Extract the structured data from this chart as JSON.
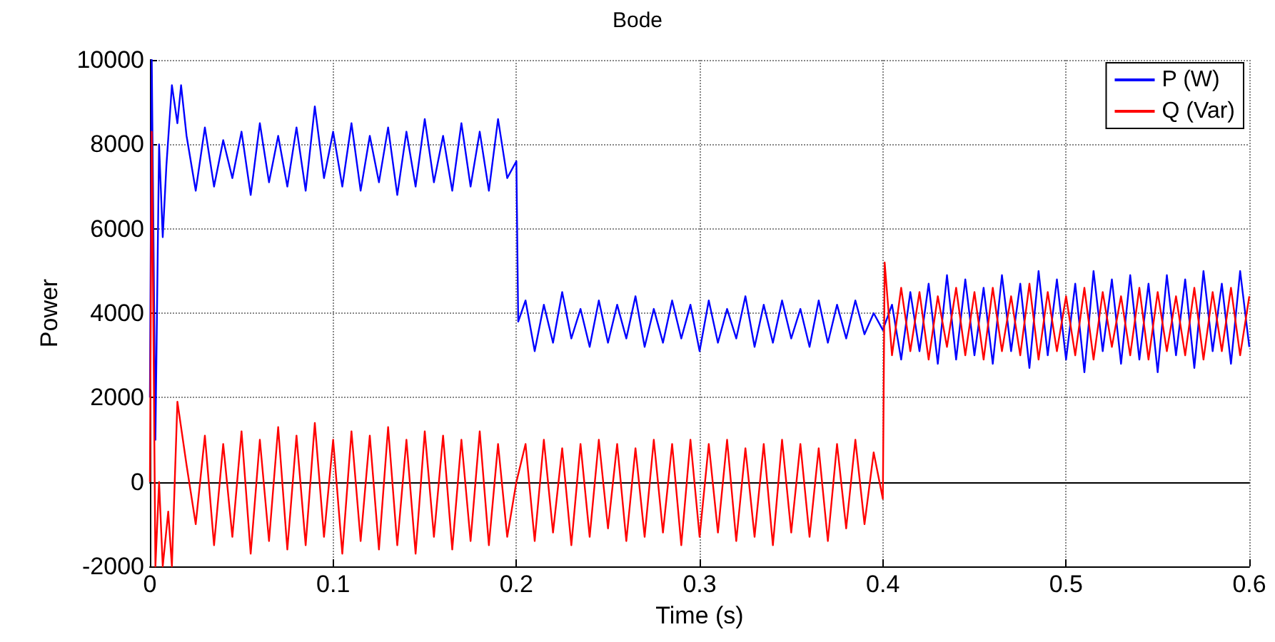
{
  "chart_data": {
    "type": "line",
    "title": "Bode",
    "xlabel": "Time (s)",
    "ylabel": "Power",
    "xlim": [
      0,
      0.6
    ],
    "xticks": [
      0,
      0.1,
      0.2,
      0.3,
      0.4,
      0.5,
      0.6
    ],
    "ylim": [
      -2000,
      10000
    ],
    "yticks": [
      -2000,
      0,
      2000,
      4000,
      6000,
      8000,
      10000
    ],
    "grid": true,
    "legend": "top right",
    "line_style": "solid",
    "marker": "none",
    "series": [
      {
        "name": "P (W)",
        "color": "#0000ff",
        "x": [
          0,
          0.001,
          0.003,
          0.005,
          0.007,
          0.009,
          0.012,
          0.015,
          0.017,
          0.02,
          0.025,
          0.03,
          0.035,
          0.04,
          0.045,
          0.05,
          0.055,
          0.06,
          0.065,
          0.07,
          0.075,
          0.08,
          0.085,
          0.09,
          0.095,
          0.1,
          0.105,
          0.11,
          0.115,
          0.12,
          0.125,
          0.13,
          0.135,
          0.14,
          0.145,
          0.15,
          0.155,
          0.16,
          0.165,
          0.17,
          0.175,
          0.18,
          0.185,
          0.19,
          0.195,
          0.2,
          0.201,
          0.205,
          0.21,
          0.215,
          0.22,
          0.225,
          0.23,
          0.235,
          0.24,
          0.245,
          0.25,
          0.255,
          0.26,
          0.265,
          0.27,
          0.275,
          0.28,
          0.285,
          0.29,
          0.295,
          0.3,
          0.305,
          0.31,
          0.315,
          0.32,
          0.325,
          0.33,
          0.335,
          0.34,
          0.345,
          0.35,
          0.355,
          0.36,
          0.365,
          0.37,
          0.375,
          0.38,
          0.385,
          0.39,
          0.395,
          0.4,
          0.405,
          0.41,
          0.415,
          0.42,
          0.425,
          0.43,
          0.435,
          0.44,
          0.445,
          0.45,
          0.455,
          0.46,
          0.465,
          0.47,
          0.475,
          0.48,
          0.485,
          0.49,
          0.495,
          0.5,
          0.505,
          0.51,
          0.515,
          0.52,
          0.525,
          0.53,
          0.535,
          0.54,
          0.545,
          0.55,
          0.555,
          0.56,
          0.565,
          0.57,
          0.575,
          0.58,
          0.585,
          0.59,
          0.595,
          0.6
        ],
        "values": [
          2000,
          10000,
          1000,
          8000,
          5800,
          7500,
          9400,
          8500,
          9400,
          8200,
          6900,
          8400,
          7000,
          8100,
          7200,
          8300,
          6800,
          8500,
          7100,
          8200,
          7000,
          8400,
          6900,
          8900,
          7200,
          8300,
          7000,
          8500,
          6900,
          8200,
          7100,
          8400,
          6800,
          8300,
          7000,
          8600,
          7100,
          8200,
          6900,
          8500,
          7000,
          8300,
          6900,
          8600,
          7200,
          7600,
          3800,
          4300,
          3100,
          4200,
          3300,
          4500,
          3400,
          4100,
          3200,
          4300,
          3300,
          4200,
          3400,
          4400,
          3200,
          4100,
          3300,
          4300,
          3400,
          4200,
          3100,
          4300,
          3300,
          4100,
          3400,
          4400,
          3200,
          4200,
          3300,
          4300,
          3400,
          4100,
          3200,
          4300,
          3300,
          4200,
          3400,
          4300,
          3500,
          4000,
          3600,
          4200,
          2900,
          4500,
          3100,
          4700,
          2800,
          4900,
          2900,
          4800,
          3000,
          4600,
          2800,
          4900,
          3100,
          4700,
          2700,
          5000,
          3000,
          4800,
          2900,
          4700,
          2600,
          5000,
          3100,
          4800,
          2800,
          4900,
          2900,
          4700,
          2600,
          4900,
          3000,
          4800,
          2700,
          5000,
          3100,
          4700,
          2800,
          5000,
          3200
        ]
      },
      {
        "name": "Q (Var)",
        "color": "#ff0000",
        "x": [
          0,
          0.001,
          0.003,
          0.005,
          0.007,
          0.01,
          0.012,
          0.015,
          0.02,
          0.025,
          0.03,
          0.035,
          0.04,
          0.045,
          0.05,
          0.055,
          0.06,
          0.065,
          0.07,
          0.075,
          0.08,
          0.085,
          0.09,
          0.095,
          0.1,
          0.105,
          0.11,
          0.115,
          0.12,
          0.125,
          0.13,
          0.135,
          0.14,
          0.145,
          0.15,
          0.155,
          0.16,
          0.165,
          0.17,
          0.175,
          0.18,
          0.185,
          0.19,
          0.195,
          0.2,
          0.205,
          0.21,
          0.215,
          0.22,
          0.225,
          0.23,
          0.235,
          0.24,
          0.245,
          0.25,
          0.255,
          0.26,
          0.265,
          0.27,
          0.275,
          0.28,
          0.285,
          0.29,
          0.295,
          0.3,
          0.305,
          0.31,
          0.315,
          0.32,
          0.325,
          0.33,
          0.335,
          0.34,
          0.345,
          0.35,
          0.355,
          0.36,
          0.365,
          0.37,
          0.375,
          0.38,
          0.385,
          0.39,
          0.395,
          0.4,
          0.401,
          0.405,
          0.41,
          0.415,
          0.42,
          0.425,
          0.43,
          0.435,
          0.44,
          0.445,
          0.45,
          0.455,
          0.46,
          0.465,
          0.47,
          0.475,
          0.48,
          0.485,
          0.49,
          0.495,
          0.5,
          0.505,
          0.51,
          0.515,
          0.52,
          0.525,
          0.53,
          0.535,
          0.54,
          0.545,
          0.55,
          0.555,
          0.56,
          0.565,
          0.57,
          0.575,
          0.58,
          0.585,
          0.59,
          0.595,
          0.6
        ],
        "values": [
          0,
          8300,
          -2000,
          0,
          -2000,
          -700,
          -2000,
          1900,
          400,
          -1000,
          1100,
          -1500,
          900,
          -1300,
          1200,
          -1700,
          1000,
          -1400,
          1300,
          -1600,
          1100,
          -1500,
          1400,
          -1300,
          1000,
          -1700,
          1200,
          -1400,
          1100,
          -1600,
          1300,
          -1500,
          1000,
          -1700,
          1200,
          -1300,
          1100,
          -1600,
          1000,
          -1400,
          1200,
          -1500,
          900,
          -1300,
          0,
          900,
          -1400,
          1000,
          -1200,
          800,
          -1500,
          900,
          -1300,
          1000,
          -1100,
          900,
          -1400,
          800,
          -1300,
          1000,
          -1200,
          900,
          -1500,
          1000,
          -1300,
          900,
          -1200,
          1000,
          -1400,
          800,
          -1300,
          900,
          -1500,
          1000,
          -1200,
          900,
          -1300,
          800,
          -1400,
          900,
          -1100,
          1000,
          -1000,
          700,
          -400,
          5200,
          3000,
          4600,
          3100,
          4500,
          2900,
          4400,
          3200,
          4600,
          3000,
          4500,
          2900,
          4600,
          3100,
          4400,
          3000,
          4700,
          2900,
          4500,
          3100,
          4400,
          3000,
          4600,
          2900,
          4500,
          3200,
          4400,
          3000,
          4600,
          2900,
          4500,
          3100,
          4400,
          3000,
          4600,
          2900,
          4500,
          3100,
          4600,
          3000,
          4400
        ]
      }
    ]
  }
}
